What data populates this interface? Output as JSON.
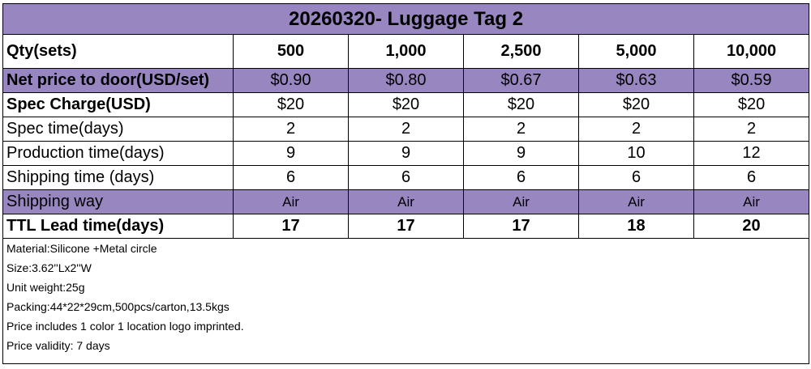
{
  "title": "20260320- Luggage Tag 2",
  "header": {
    "label": "Qty(sets)",
    "quantities": [
      "500",
      "1,000",
      "2,500",
      "5,000",
      "10,000"
    ]
  },
  "rows": [
    {
      "label": "Net price to door(USD/set)",
      "values": [
        "$0.90",
        "$0.80",
        "$0.67",
        "$0.63",
        "$0.59"
      ]
    },
    {
      "label": "Spec Charge(USD)",
      "values": [
        "$20",
        "$20",
        "$20",
        "$20",
        "$20"
      ]
    },
    {
      "label": "Spec time(days)",
      "values": [
        "2",
        "2",
        "2",
        "2",
        "2"
      ]
    },
    {
      "label": "Production time(days)",
      "values": [
        "9",
        "9",
        "9",
        "10",
        "12"
      ]
    },
    {
      "label": "Shipping time (days)",
      "values": [
        "6",
        "6",
        "6",
        "6",
        "6"
      ]
    },
    {
      "label": "Shipping way",
      "values": [
        "Air",
        "Air",
        "Air",
        "Air",
        "Air"
      ]
    },
    {
      "label": "TTL Lead time(days)",
      "values": [
        "17",
        "17",
        "17",
        "18",
        "20"
      ]
    }
  ],
  "notes": [
    "Material:Silicone +Metal circle",
    "Size:3.62''Lx2''W",
    "Unit weight:25g",
    "Packing:44*22*29cm,500pcs/carton,13.5kgs",
    "Price includes 1 color 1 location logo imprinted.",
    "Price validity: 7 days"
  ],
  "colors": {
    "header_fill": "#9886c0",
    "border": "#000000"
  }
}
